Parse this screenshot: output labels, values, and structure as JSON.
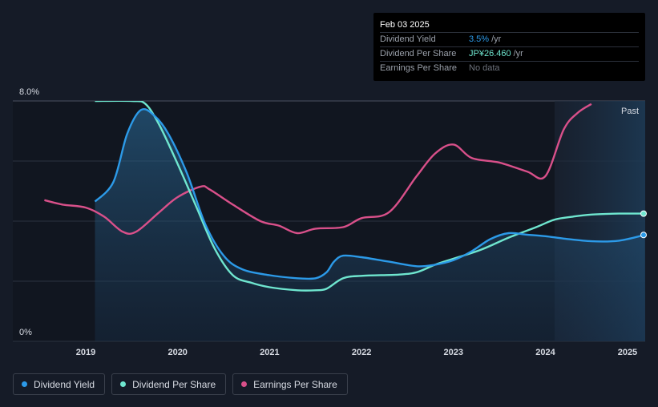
{
  "colors": {
    "background": "#151b27",
    "yield": "#2c9ae8",
    "dps": "#6fe6cf",
    "eps": "#d9508a",
    "grid": "#2c333f"
  },
  "tooltip": {
    "date": "Feb 03 2025",
    "rows": [
      {
        "label": "Dividend Yield",
        "value": "3.5%",
        "unit": "/yr"
      },
      {
        "label": "Dividend Per Share",
        "value": "JP¥26.460",
        "unit": "/yr"
      },
      {
        "label": "Earnings Per Share",
        "value": "No data",
        "unit": ""
      }
    ]
  },
  "legend": [
    {
      "label": "Dividend Yield",
      "color": "#2c9ae8"
    },
    {
      "label": "Dividend Per Share",
      "color": "#6fe6cf"
    },
    {
      "label": "Earnings Per Share",
      "color": "#d9508a"
    }
  ],
  "chart_data": {
    "type": "line",
    "y_axis_labels": [
      "8.0%",
      "0%"
    ],
    "ylim": [
      0,
      8
    ],
    "xlim": [
      2018.5,
      2025.1
    ],
    "x_ticks": [
      2019,
      2020,
      2021,
      2022,
      2023,
      2024,
      2025
    ],
    "x_tick_labels": [
      "2019",
      "2020",
      "2021",
      "2022",
      "2023",
      "2024",
      "2025"
    ],
    "past_label": "Past",
    "past_region_start": 2024.1,
    "series": [
      {
        "name": "Dividend Yield",
        "color": "#2c9ae8",
        "x": [
          2019.1,
          2019.3,
          2019.45,
          2019.6,
          2019.75,
          2019.9,
          2020.1,
          2020.3,
          2020.5,
          2020.7,
          2021.0,
          2021.3,
          2021.5,
          2021.62,
          2021.7,
          2021.8,
          2022.0,
          2022.3,
          2022.6,
          2022.8,
          2023.0,
          2023.2,
          2023.4,
          2023.6,
          2023.8,
          2024.0,
          2024.2,
          2024.5,
          2024.8,
          2025.08
        ],
        "values": [
          4.65,
          5.3,
          6.9,
          7.7,
          7.5,
          6.9,
          5.6,
          3.9,
          2.85,
          2.4,
          2.2,
          2.1,
          2.1,
          2.3,
          2.65,
          2.85,
          2.8,
          2.65,
          2.5,
          2.55,
          2.7,
          3.0,
          3.4,
          3.6,
          3.55,
          3.5,
          3.42,
          3.33,
          3.35,
          3.54
        ]
      },
      {
        "name": "Dividend Per Share",
        "color": "#6fe6cf",
        "x": [
          2019.1,
          2019.5,
          2019.65,
          2019.8,
          2020.0,
          2020.2,
          2020.4,
          2020.6,
          2020.8,
          2021.0,
          2021.3,
          2021.5,
          2021.62,
          2021.8,
          2022.0,
          2022.4,
          2022.6,
          2022.8,
          2023.0,
          2023.3,
          2023.6,
          2023.9,
          2024.1,
          2024.3,
          2024.5,
          2024.8,
          2025.08
        ],
        "values": [
          8.0,
          8.0,
          7.9,
          7.2,
          5.9,
          4.5,
          3.1,
          2.2,
          1.95,
          1.8,
          1.7,
          1.7,
          1.75,
          2.1,
          2.18,
          2.22,
          2.3,
          2.55,
          2.75,
          3.05,
          3.45,
          3.8,
          4.05,
          4.15,
          4.22,
          4.25,
          4.25
        ]
      },
      {
        "name": "Earnings Per Share",
        "color": "#d9508a",
        "x": [
          2018.55,
          2018.75,
          2019.0,
          2019.2,
          2019.4,
          2019.55,
          2019.8,
          2020.0,
          2020.25,
          2020.35,
          2020.6,
          2020.9,
          2021.1,
          2021.3,
          2021.5,
          2021.8,
          2022.0,
          2022.3,
          2022.6,
          2022.8,
          2023.0,
          2023.2,
          2023.5,
          2023.8,
          2024.0,
          2024.2,
          2024.35,
          2024.5
        ],
        "values": [
          4.7,
          4.55,
          4.45,
          4.15,
          3.65,
          3.65,
          4.3,
          4.8,
          5.15,
          5.05,
          4.55,
          4.0,
          3.85,
          3.6,
          3.75,
          3.8,
          4.1,
          4.3,
          5.5,
          6.25,
          6.55,
          6.1,
          5.95,
          5.65,
          5.5,
          7.05,
          7.6,
          7.9
        ]
      }
    ],
    "end_markers": [
      "Dividend Yield",
      "Dividend Per Share"
    ]
  }
}
